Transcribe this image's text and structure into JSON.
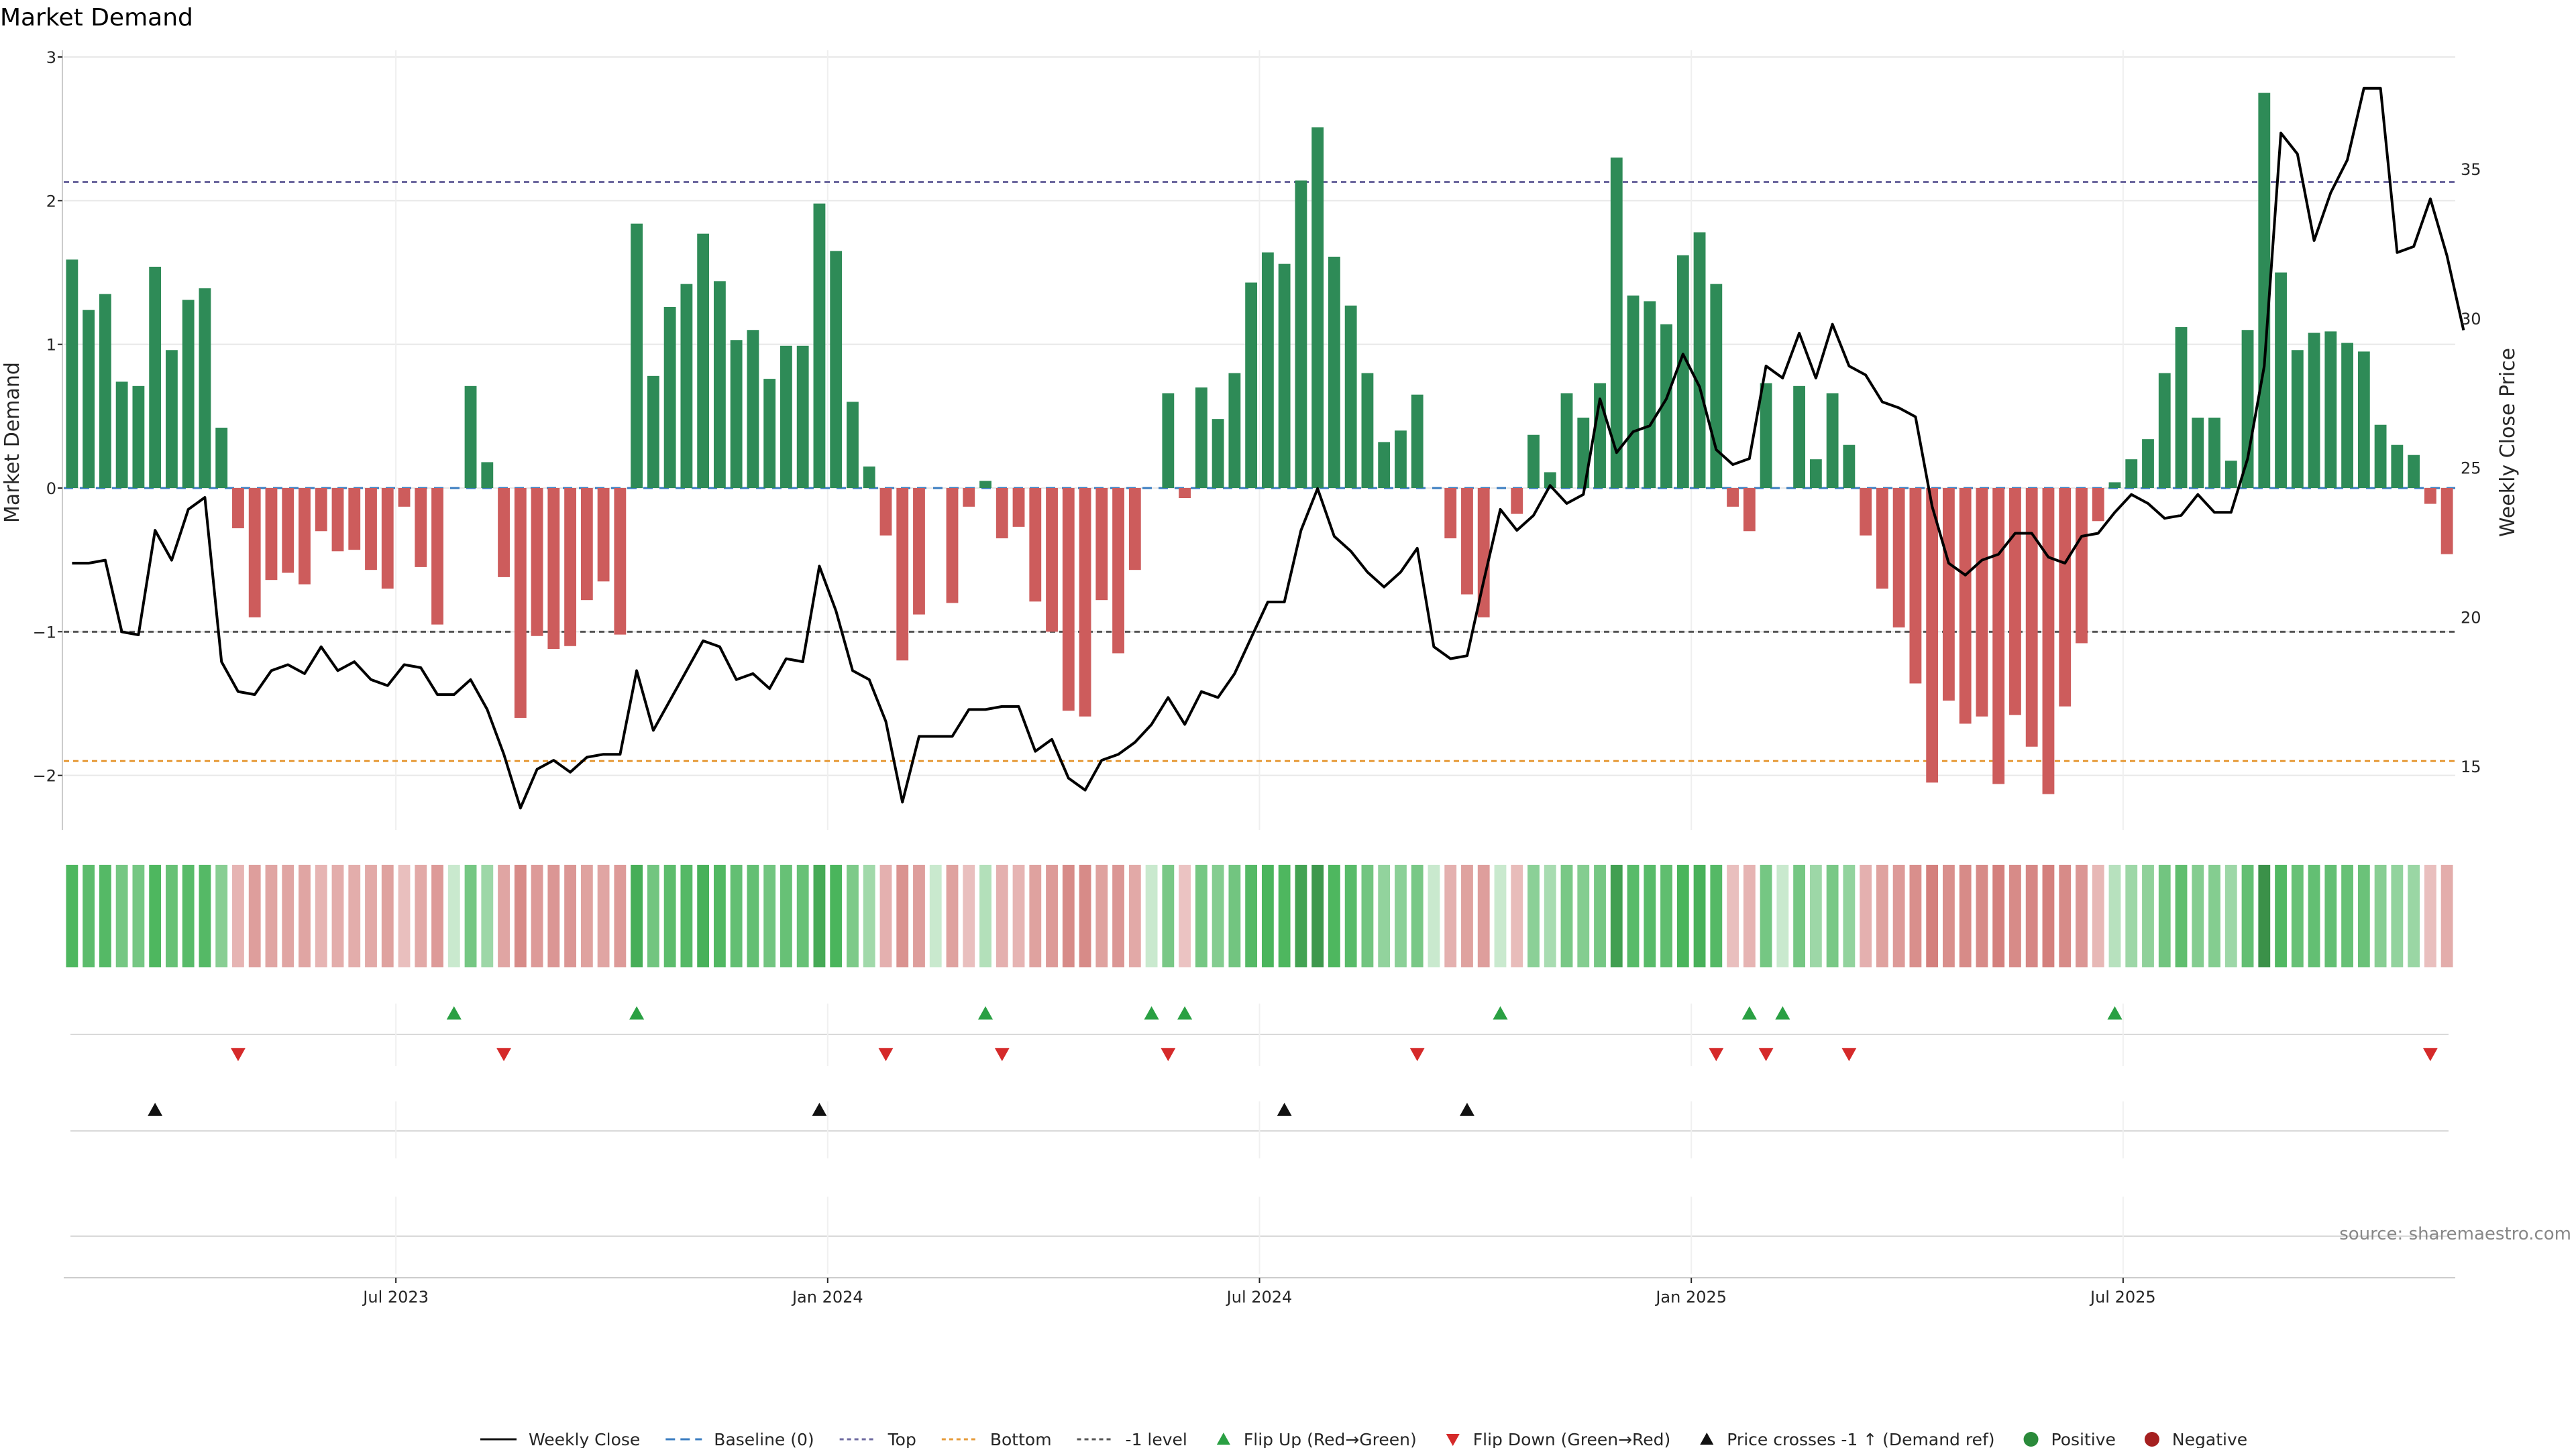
{
  "chart_data": {
    "type": "bar+line",
    "title": "Market Demand",
    "ylabel_left": "Market Demand",
    "ylabel_right": "Weekly Close Price",
    "ylim_left": [
      -2.4,
      3.0
    ],
    "ylim_right": [
      13.0,
      38.0
    ],
    "yticks_left": [
      3,
      2,
      1,
      0,
      -1,
      -2
    ],
    "ytick_labels_left": [
      "3",
      "2",
      "1",
      "0",
      "−1",
      "−2"
    ],
    "yticks_right": [
      35,
      30,
      25,
      20,
      15
    ],
    "ytick_labels_right": [
      "35",
      "30",
      "25",
      "20",
      "15"
    ],
    "x_start_date": "2023-02-03",
    "week_count": 144,
    "x_ticks": [
      {
        "label": "Jul 2023",
        "week": 20
      },
      {
        "label": "Jan 2024",
        "week": 46
      },
      {
        "label": "Jul 2024",
        "week": 72
      },
      {
        "label": "Jan 2025",
        "week": 98
      },
      {
        "label": "Jul 2025",
        "week": 124
      }
    ],
    "reference_lines": {
      "top": 2.13,
      "bottom": -1.9,
      "minus_one": -1.0,
      "baseline": 0
    },
    "demand": [
      1.59,
      1.24,
      1.35,
      0.74,
      0.71,
      1.54,
      0.96,
      1.31,
      1.39,
      0.42,
      -0.28,
      -0.9,
      -0.64,
      -0.59,
      -0.67,
      -0.3,
      -0.44,
      -0.43,
      -0.57,
      -0.7,
      -0.13,
      -0.55,
      -0.95,
      0.0,
      0.71,
      0.18,
      -0.62,
      -1.6,
      -1.03,
      -1.12,
      -1.1,
      -0.78,
      -0.65,
      -1.02,
      1.84,
      0.78,
      1.26,
      1.42,
      1.77,
      1.44,
      1.03,
      1.1,
      0.76,
      0.99,
      0.99,
      1.98,
      1.65,
      0.6,
      0.15,
      -0.33,
      -1.2,
      -0.88,
      0.0,
      -0.8,
      -0.13,
      0.05,
      -0.35,
      -0.27,
      -0.79,
      -1.0,
      -1.55,
      -1.59,
      -0.78,
      -1.15,
      -0.57,
      0.0,
      0.66,
      -0.07,
      0.7,
      0.48,
      0.8,
      1.43,
      1.64,
      1.56,
      2.14,
      2.51,
      1.61,
      1.27,
      0.8,
      0.32,
      0.4,
      0.65,
      0.0,
      -0.35,
      -0.74,
      -0.9,
      0.0,
      -0.18,
      0.37,
      0.11,
      0.66,
      0.49,
      0.73,
      2.3,
      1.34,
      1.3,
      1.14,
      1.62,
      1.78,
      1.42,
      -0.13,
      -0.3,
      0.73,
      0.0,
      0.71,
      0.2,
      0.66,
      0.3,
      -0.33,
      -0.7,
      -0.97,
      -1.36,
      -2.05,
      -1.48,
      -1.64,
      -1.59,
      -2.06,
      -1.58,
      -1.8,
      -2.13,
      -1.52,
      -1.08,
      -0.23,
      0.04,
      0.2,
      0.34,
      0.8,
      1.12,
      0.49,
      0.49,
      0.19,
      1.1,
      2.75,
      1.5,
      0.96,
      1.08,
      1.09,
      1.01,
      0.95,
      0.44,
      0.3,
      0.23,
      -0.11,
      -0.46
    ],
    "close": [
      21.8,
      21.8,
      21.9,
      19.5,
      19.4,
      22.9,
      21.9,
      23.6,
      24.0,
      18.5,
      17.5,
      17.4,
      18.2,
      18.4,
      18.1,
      19.0,
      18.2,
      18.5,
      17.9,
      17.7,
      18.4,
      18.3,
      17.4,
      17.4,
      17.9,
      16.9,
      15.4,
      13.6,
      14.9,
      15.2,
      14.8,
      15.3,
      15.4,
      15.4,
      18.2,
      16.2,
      17.2,
      18.2,
      19.2,
      19.0,
      17.9,
      18.1,
      17.6,
      18.6,
      18.5,
      21.7,
      20.2,
      18.2,
      17.9,
      16.5,
      13.8,
      16.0,
      16.0,
      16.0,
      16.9,
      16.9,
      17.0,
      17.0,
      15.5,
      15.9,
      14.6,
      14.2,
      15.2,
      15.4,
      15.8,
      16.4,
      17.3,
      16.4,
      17.5,
      17.3,
      18.1,
      19.3,
      20.5,
      20.5,
      22.9,
      24.3,
      22.7,
      22.2,
      21.5,
      21.0,
      21.5,
      22.3,
      19.0,
      18.6,
      18.7,
      21.2,
      23.6,
      22.9,
      23.4,
      24.4,
      23.8,
      24.1,
      27.3,
      25.5,
      26.2,
      26.4,
      27.3,
      28.8,
      27.7,
      25.6,
      25.1,
      25.3,
      28.4,
      28.0,
      29.5,
      28.0,
      29.8,
      28.4,
      28.1,
      27.2,
      27.0,
      26.7,
      23.7,
      21.8,
      21.4,
      21.9,
      22.1,
      22.8,
      22.8,
      22.0,
      21.8,
      22.7,
      22.8,
      23.5,
      24.1,
      23.8,
      23.3,
      23.4,
      24.1,
      23.5,
      23.5,
      25.3,
      28.4,
      36.2,
      35.5,
      32.6,
      34.2,
      35.3,
      37.7,
      37.7,
      32.2,
      32.4,
      34.0,
      32.1,
      29.6
    ],
    "flip_up_weeks": [
      23,
      34,
      55,
      65,
      67,
      86,
      101,
      103,
      123
    ],
    "flip_down_weeks": [
      10,
      26,
      49,
      56,
      66,
      81,
      99,
      102,
      107,
      142
    ],
    "price_cross_weeks": [
      5,
      45,
      73,
      84
    ],
    "legend": [
      {
        "label": "Weekly Close",
        "marker": "line-solid",
        "color": "#111111"
      },
      {
        "label": "Baseline (0)",
        "marker": "line-dashed",
        "color": "#3a7cc0"
      },
      {
        "label": "Top",
        "marker": "line-dotted",
        "color": "#6e6aa0"
      },
      {
        "label": "Bottom",
        "marker": "line-dotted",
        "color": "#e69b3a"
      },
      {
        "label": "-1 level",
        "marker": "line-dotted",
        "color": "#555555"
      },
      {
        "label": "Flip Up (Red→Green)",
        "marker": "triangle-up",
        "color": "#2aa043"
      },
      {
        "label": "Flip Down (Green→Red)",
        "marker": "triangle-down",
        "color": "#d52a2a"
      },
      {
        "label": "Price crosses -1 ↑ (Demand ref)",
        "marker": "triangle-up",
        "color": "#111111"
      },
      {
        "label": "Positive",
        "marker": "circle",
        "color": "#2a8a3a"
      },
      {
        "label": "Negative",
        "marker": "circle",
        "color": "#a52020"
      }
    ],
    "source": "source: sharemaestro.com"
  },
  "colors": {
    "positive_bar": "#2e8b57",
    "negative_bar": "#cd5c5c",
    "close_line": "#000000",
    "top_line": "#6e6aa0",
    "bottom_line": "#e69b3a",
    "minus_one_line": "#555555",
    "baseline": "#3a7cc0",
    "flip_up": "#2aa043",
    "flip_down": "#d52a2a",
    "price_cross": "#111111"
  }
}
